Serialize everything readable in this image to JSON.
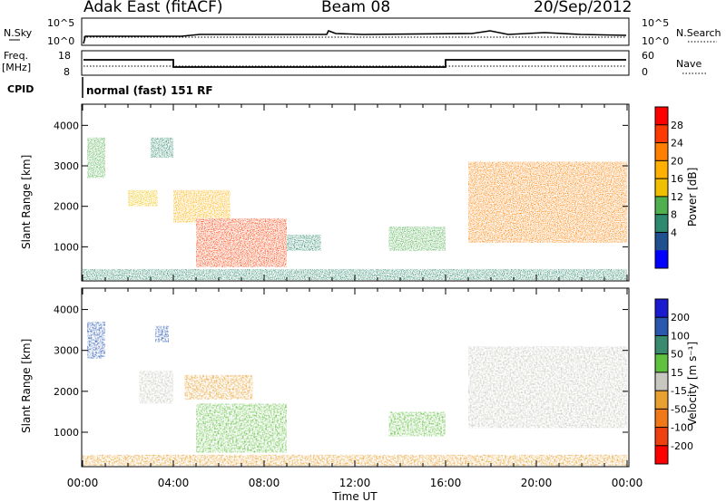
{
  "header": {
    "station": "Adak East (fitACF)",
    "beam": "Beam 08",
    "date": "20/Sep/2012"
  },
  "top_panels": {
    "nsky_label": "N.Sky",
    "nsky_ticks": [
      "10^5",
      "10^0"
    ],
    "nsearch_label": "N.Search",
    "nsearch_ticks": [
      "10^5",
      "10^0"
    ],
    "freq_label_1": "Freq.",
    "freq_label_2": "[MHz]",
    "freq_ticks": [
      "18",
      "8"
    ],
    "nave_label": "Nave",
    "nave_ticks": [
      "60",
      "0"
    ],
    "cpid_label": "CPID",
    "cpid_text": "normal (fast) 151 RF"
  },
  "axes": {
    "xlabel": "Time UT",
    "x_ticks": [
      "00:00",
      "04:00",
      "08:00",
      "12:00",
      "16:00",
      "20:00",
      "00:00"
    ],
    "ylabel": "Slant Range [km]",
    "y_ticks": [
      "1000",
      "2000",
      "3000",
      "4000"
    ]
  },
  "power_colorbar": {
    "label": "Power [dB]",
    "ticks": [
      "28",
      "24",
      "20",
      "16",
      "12",
      "8",
      "4"
    ],
    "colors": [
      "#ff0000",
      "#ff3a00",
      "#ff8000",
      "#ffb000",
      "#f0c000",
      "#50b050",
      "#2e8a6e",
      "#205090",
      "#0000ff"
    ]
  },
  "velocity_colorbar": {
    "label": "Velocity [m s⁻¹]",
    "ticks": [
      "200",
      "100",
      "50",
      "15",
      "-15",
      "-50",
      "-100",
      "-200"
    ],
    "colors": [
      "#1a1ad0",
      "#2a58b0",
      "#3a8a70",
      "#60c040",
      "#c8c8c0",
      "#e8a030",
      "#f07818",
      "#f04010",
      "#ff0000"
    ]
  },
  "chart_data": [
    {
      "type": "heatmap",
      "title": "Power",
      "xlabel": "Time UT",
      "ylabel": "Slant Range [km]",
      "xlim": [
        0,
        24
      ],
      "ylim": [
        180,
        4500
      ],
      "colorbar_label": "Power [dB]",
      "colorbar_range": [
        0,
        32
      ],
      "regions": [
        {
          "x": [
            0.2,
            1.0
          ],
          "y": [
            2700,
            3700
          ],
          "value": 14
        },
        {
          "x": [
            2.0,
            3.3
          ],
          "y": [
            2000,
            2400
          ],
          "value": 18
        },
        {
          "x": [
            3.0,
            4.0
          ],
          "y": [
            3200,
            3700
          ],
          "value": 10
        },
        {
          "x": [
            4.0,
            6.5
          ],
          "y": [
            1600,
            2400
          ],
          "value": 20
        },
        {
          "x": [
            5.0,
            9.0
          ],
          "y": [
            500,
            1700
          ],
          "value": 28
        },
        {
          "x": [
            9.0,
            10.5
          ],
          "y": [
            900,
            1300
          ],
          "value": 8
        },
        {
          "x": [
            13.5,
            16.0
          ],
          "y": [
            900,
            1500
          ],
          "value": 12
        },
        {
          "x": [
            17.0,
            24.0
          ],
          "y": [
            1100,
            3100
          ],
          "value": 24
        },
        {
          "x": [
            0.0,
            24.0
          ],
          "y": [
            180,
            450
          ],
          "value": 10
        }
      ]
    },
    {
      "type": "heatmap",
      "title": "Velocity",
      "xlabel": "Time UT",
      "ylabel": "Slant Range [km]",
      "xlim": [
        0,
        24
      ],
      "ylim": [
        180,
        4500
      ],
      "colorbar_label": "Velocity [m s⁻¹]",
      "colorbar_range": [
        -250,
        250
      ],
      "regions": [
        {
          "x": [
            0.2,
            1.0
          ],
          "y": [
            2800,
            3700
          ],
          "value": 200
        },
        {
          "x": [
            2.5,
            4.0
          ],
          "y": [
            1700,
            2500
          ],
          "value": 0
        },
        {
          "x": [
            3.2,
            3.8
          ],
          "y": [
            3200,
            3600
          ],
          "value": 200
        },
        {
          "x": [
            4.5,
            7.5
          ],
          "y": [
            1800,
            2400
          ],
          "value": -50
        },
        {
          "x": [
            5.0,
            9.0
          ],
          "y": [
            500,
            1700
          ],
          "value": 60
        },
        {
          "x": [
            13.5,
            16.0
          ],
          "y": [
            900,
            1500
          ],
          "value": 40
        },
        {
          "x": [
            17.0,
            24.0
          ],
          "y": [
            1100,
            3100
          ],
          "value": 0
        },
        {
          "x": [
            0.0,
            24.0
          ],
          "y": [
            180,
            450
          ],
          "value": -40
        }
      ]
    }
  ]
}
